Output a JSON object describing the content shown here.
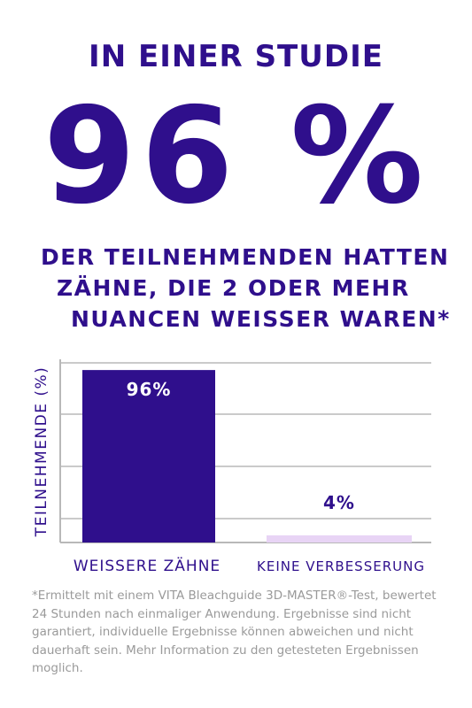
{
  "header": {
    "top_line": "IN EINER STUDIE",
    "big_stat": "96 %",
    "sub_lines": [
      "DER TEILNEHMENDEN HATTEN",
      "ZÄHNE, DIE 2 ODER MEHR",
      "NUANCEN WEISSER WAREN*"
    ]
  },
  "chart_data": {
    "type": "bar",
    "categories": [
      "WEISSERE ZÄHNE",
      "KEINE VERBESSERUNG"
    ],
    "values": [
      96,
      4
    ],
    "value_labels": [
      "96%",
      "4%"
    ],
    "ylabel": "TEILNEHMENDE (%)",
    "ylim": [
      0,
      100
    ],
    "grid": true,
    "bar_colors": [
      "#2f0f8c",
      "#e8d4f5"
    ],
    "value_label_colors": [
      "#ffffff",
      "#2f0f8c"
    ]
  },
  "footnote": "*Ermittelt mit einem VITA Bleachguide 3D-MASTER®-Test, bewertet 24 Stunden nach einmaliger Anwendung. Ergebnisse sind nicht garantiert, individuelle Ergebnisse können abweichen und nicht dauerhaft sein. Mehr Information zu den getesteten Ergebnissen moglich.",
  "colors": {
    "brand_purple": "#2f0f8c",
    "grid": "#b8b8b8",
    "footnote": "#9a9a9a"
  }
}
